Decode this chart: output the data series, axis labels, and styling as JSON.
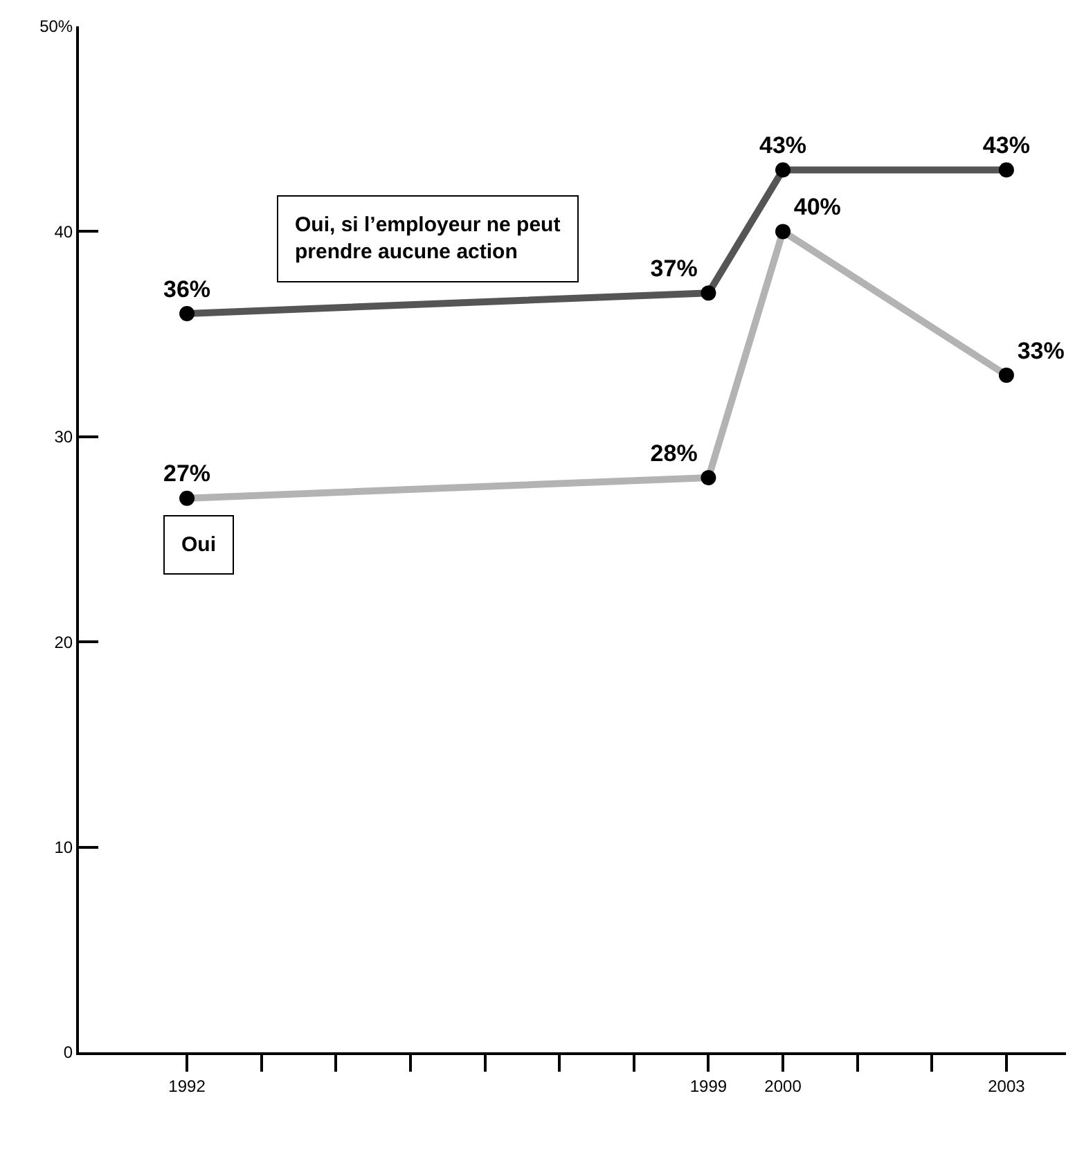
{
  "chart_data": {
    "type": "line",
    "x": [
      1992,
      1999,
      2000,
      2003
    ],
    "series": [
      {
        "name": "Oui, si l’employeur ne peut prendre aucune action",
        "color": "#555555",
        "values": [
          36,
          37,
          43,
          43
        ],
        "value_labels": [
          "36%",
          "37%",
          "43%",
          "43%"
        ]
      },
      {
        "name": "Oui",
        "color": "#b3b3b3",
        "values": [
          27,
          28,
          40,
          33
        ],
        "value_labels": [
          "27%",
          "28%",
          "40%",
          "33%"
        ]
      }
    ],
    "xlim": [
      1990.55,
      2003.8
    ],
    "xticks": [
      1992,
      {
        "value": 1993,
        "label": null
      },
      {
        "value": 1994,
        "label": null
      },
      {
        "value": 1995,
        "label": null
      },
      {
        "value": 1996,
        "label": null
      },
      {
        "value": 1997,
        "label": null
      },
      {
        "value": 1998,
        "label": null
      },
      1999,
      2000,
      {
        "value": 2001,
        "label": null
      },
      {
        "value": 2002,
        "label": null
      },
      2003
    ],
    "ylim": [
      0,
      50
    ],
    "yticks": [
      0,
      10,
      20,
      30,
      40,
      {
        "value": 50,
        "label": "50%"
      }
    ],
    "marker": "circle",
    "line_style": "solid",
    "grid": false,
    "legend": false
  }
}
